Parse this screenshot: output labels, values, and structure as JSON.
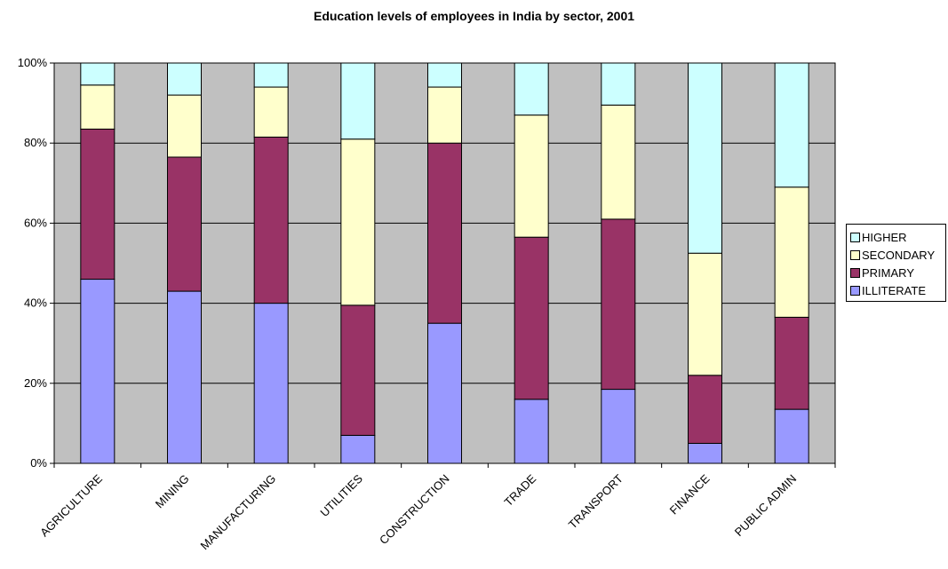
{
  "chart_data": {
    "type": "bar",
    "stacked": "percent",
    "title": "Education levels of employees in India by sector, 2001",
    "xlabel": "",
    "ylabel": "",
    "ylim": [
      0,
      100
    ],
    "y_ticks": [
      "0%",
      "20%",
      "40%",
      "60%",
      "80%",
      "100%"
    ],
    "categories": [
      "AGRICULTURE",
      "MINING",
      "MANUFACTURING",
      "UTILITIES",
      "CONSTRUCTION",
      "TRADE",
      "TRANSPORT",
      "FINANCE",
      "PUBLIC ADMIN"
    ],
    "series": [
      {
        "name": "ILLITERATE",
        "color": "#9999ff",
        "values": [
          46,
          43,
          40,
          7,
          35,
          16,
          18.5,
          5,
          13.5
        ]
      },
      {
        "name": "PRIMARY",
        "color": "#993366",
        "values": [
          37.5,
          33.5,
          41.5,
          32.5,
          45,
          40.5,
          42.5,
          17,
          23
        ]
      },
      {
        "name": "SECONDARY",
        "color": "#ffffcc",
        "values": [
          11,
          15.5,
          12.5,
          41.5,
          14,
          30.5,
          28.5,
          30.5,
          32.5
        ]
      },
      {
        "name": "HIGHER",
        "color": "#ccffff",
        "values": [
          5.5,
          8,
          6,
          19,
          6,
          13,
          10.5,
          47.5,
          31
        ]
      }
    ],
    "legend_order": [
      "HIGHER",
      "SECONDARY",
      "PRIMARY",
      "ILLITERATE"
    ],
    "legend_position": "right",
    "grid": true,
    "plot_background": "#c0c0c0"
  }
}
